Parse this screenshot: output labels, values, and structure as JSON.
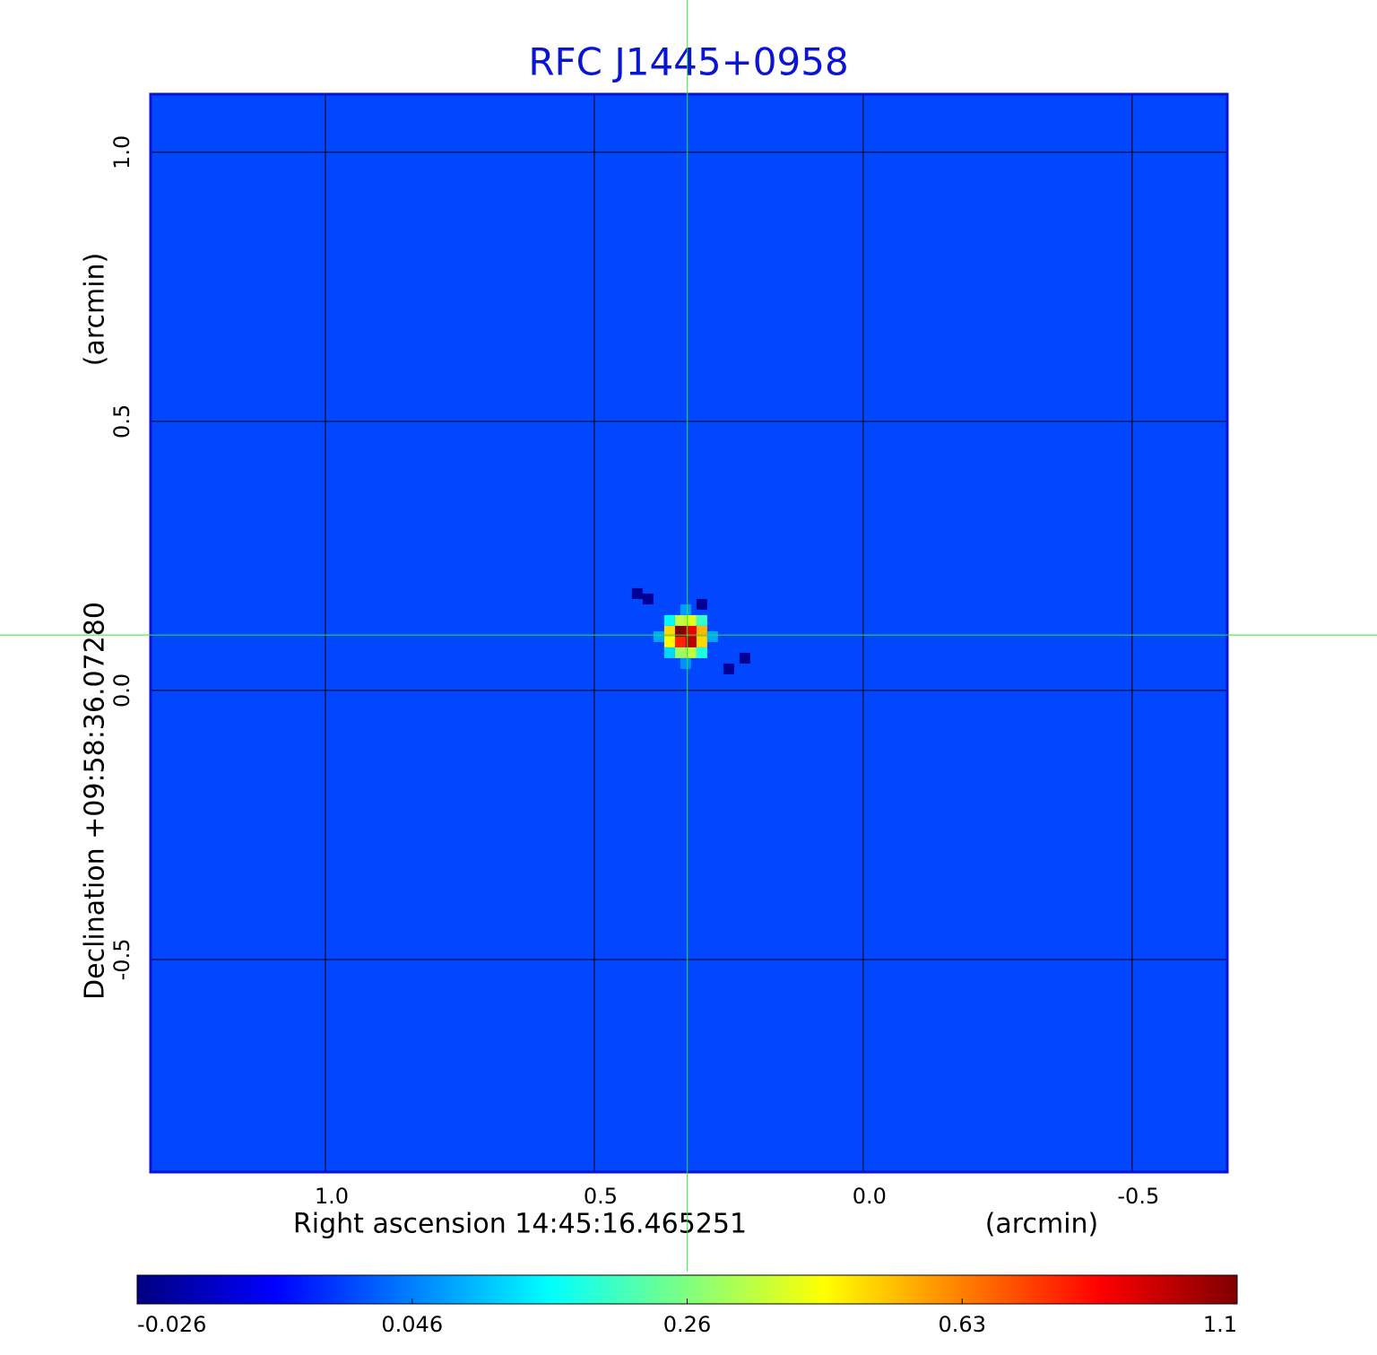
{
  "chart_data": {
    "type": "image",
    "title": "RFC J1445+0958",
    "x_label": "Right ascension  14:45:16.465251",
    "x_unit": "(arcmin)",
    "y_label": "Declination  +09:58:36.07280",
    "y_unit": "(arcmin)",
    "xlim": [
      1.325,
      -0.677
    ],
    "ylim": [
      -0.895,
      1.108
    ],
    "xticks": [
      {
        "value": 1,
        "label": "1.0"
      },
      {
        "value": 0.5,
        "label": "0.5"
      },
      {
        "value": 0,
        "label": "0.0"
      },
      {
        "value": -0.5,
        "label": "-0.5"
      }
    ],
    "yticks": [
      {
        "value": -0.5,
        "label": "-0.5"
      },
      {
        "value": 0,
        "label": "0.0"
      },
      {
        "value": 0.5,
        "label": "0.5"
      },
      {
        "value": 1,
        "label": "1.0"
      }
    ],
    "grid": true,
    "crosshair": {
      "x": 0.327,
      "y": 0.103
    },
    "background": 0.03,
    "pixels": {
      "x": [
        0.34,
        0.32,
        0.34,
        0.32,
        0.36,
        0.36,
        0.3,
        0.3,
        0.34,
        0.32,
        0.34,
        0.32,
        0.36,
        0.3,
        0.36,
        0.3,
        0.38,
        0.28,
        0.33,
        0.33,
        0.42,
        0.4,
        0.3,
        0.22,
        0.25
      ],
      "y": [
        0.11,
        0.11,
        0.09,
        0.09,
        0.11,
        0.09,
        0.11,
        0.09,
        0.13,
        0.13,
        0.07,
        0.07,
        0.13,
        0.13,
        0.07,
        0.07,
        0.1,
        0.1,
        0.15,
        0.05,
        0.18,
        0.17,
        0.16,
        0.06,
        0.04
      ],
      "values": [
        1.1,
        0.9,
        0.8,
        1.0,
        0.5,
        0.45,
        0.55,
        0.5,
        0.35,
        0.4,
        0.3,
        0.35,
        0.15,
        0.2,
        0.12,
        0.18,
        0.08,
        0.08,
        0.07,
        0.06,
        -0.02,
        -0.02,
        -0.02,
        -0.02,
        -0.02
      ]
    },
    "colorbar": {
      "ticks": [
        -0.026,
        0.046,
        0.26,
        0.63,
        1.1
      ]
    }
  }
}
